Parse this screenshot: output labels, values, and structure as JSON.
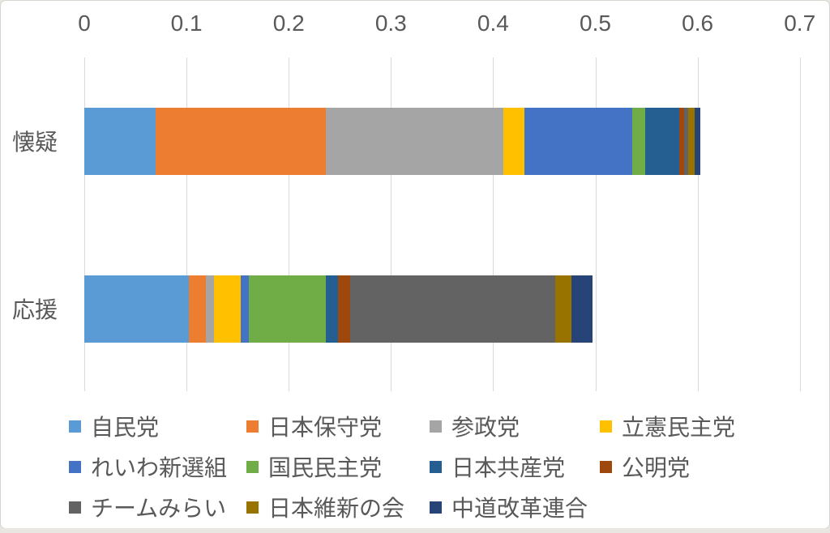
{
  "chart_data": {
    "type": "bar",
    "variant": "horizontal-stacked",
    "title": "",
    "xlabel": "",
    "ylabel": "",
    "xlim": [
      0,
      0.7
    ],
    "grid": true,
    "axis_position": "top",
    "legend_position": "bottom",
    "x_ticks": [
      "0",
      "0.1",
      "0.2",
      "0.3",
      "0.4",
      "0.5",
      "0.6",
      "0.7"
    ],
    "x_tick_values": [
      0,
      0.1,
      0.2,
      0.3,
      0.4,
      0.5,
      0.6,
      0.7
    ],
    "categories": [
      "懐疑",
      "応援"
    ],
    "series": [
      {
        "name": "自民党",
        "color": "#5B9BD5",
        "values": [
          0.07,
          0.102
        ]
      },
      {
        "name": "日本保守党",
        "color": "#ED7D31",
        "values": [
          0.166,
          0.017
        ]
      },
      {
        "name": "参政党",
        "color": "#A5A5A5",
        "values": [
          0.174,
          0.008
        ]
      },
      {
        "name": "立憲民主党",
        "color": "#FFC000",
        "values": [
          0.021,
          0.026
        ]
      },
      {
        "name": "れいわ新選組",
        "color": "#4472C4",
        "values": [
          0.105,
          0.008
        ]
      },
      {
        "name": "国民民主党",
        "color": "#70AD47",
        "values": [
          0.013,
          0.075
        ]
      },
      {
        "name": "日本共産党",
        "color": "#255E91",
        "values": [
          0.033,
          0.012
        ]
      },
      {
        "name": "公明党",
        "color": "#9E480E",
        "values": [
          0.005,
          0.012
        ]
      },
      {
        "name": "チームみらい",
        "color": "#636363",
        "values": [
          0.004,
          0.201
        ]
      },
      {
        "name": "日本維新の会",
        "color": "#997300",
        "values": [
          0.006,
          0.016
        ]
      },
      {
        "name": "中道改革連合",
        "color": "#264478",
        "values": [
          0.006,
          0.02
        ]
      }
    ],
    "totals": [
      0.603,
      0.497
    ]
  },
  "colors": {
    "text": "#595959",
    "gridline": "#D9D9D9",
    "background": "#FFFFFF",
    "frame_border": "#D8D5D0",
    "page_strip": "#E9E6E2"
  }
}
